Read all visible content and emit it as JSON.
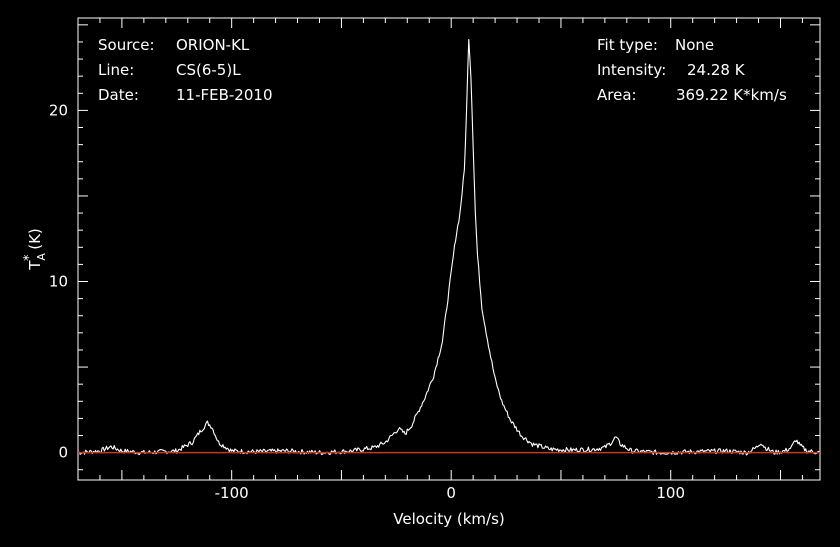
{
  "annotations": {
    "left": [
      {
        "key": "Source:",
        "value": "ORION-KL"
      },
      {
        "key": "Line:",
        "value": "CS(6-5)L"
      },
      {
        "key": "Date:",
        "value": "11-FEB-2010"
      }
    ],
    "right": [
      {
        "key": "Fit type:",
        "value": "None"
      },
      {
        "key": "Intensity:",
        "value": "24.28 K"
      },
      {
        "key": "Area:",
        "value": "369.22 K*km/s"
      }
    ]
  },
  "colors": {
    "background": "#000000",
    "spectrum": "#ffffff",
    "baseline": "#c0392b",
    "axes": "#ffffff"
  },
  "chart_data": {
    "type": "line",
    "xlabel": "Velocity (km/s)",
    "ylabel": "T*A (K)",
    "xlim": [
      -170,
      168
    ],
    "ylim": [
      -1.6,
      25.4
    ],
    "xticks": [
      -100,
      0,
      100
    ],
    "yticks": [
      0,
      10,
      20
    ],
    "grid": false,
    "series": [
      {
        "style": "spectrum",
        "x": [
          -170,
          -160,
          -155,
          -150,
          -140,
          -125,
          -118,
          -114,
          -111,
          -109,
          -106,
          -100,
          -90,
          -75,
          -60,
          -45,
          -35,
          -30,
          -27,
          -24,
          -21,
          -18,
          -12,
          -8,
          -4,
          0,
          2,
          4,
          6,
          7,
          8,
          9,
          10,
          11,
          12,
          13,
          14,
          16,
          18,
          20,
          23,
          27,
          32,
          37,
          45,
          55,
          65,
          70,
          73,
          75,
          77,
          82,
          95,
          110,
          125,
          135,
          139,
          141,
          143,
          147,
          152,
          155,
          157,
          159,
          162,
          168
        ],
        "y": [
          0.0,
          0.1,
          0.35,
          0.1,
          0.0,
          0.1,
          0.6,
          1.3,
          1.75,
          1.5,
          0.6,
          0.1,
          0.05,
          0.1,
          0.0,
          0.1,
          0.3,
          0.6,
          1.0,
          1.4,
          1.1,
          1.6,
          3.2,
          4.5,
          6.5,
          10.5,
          12.5,
          14.0,
          16.5,
          20.0,
          24.28,
          22.0,
          18.0,
          14.0,
          11.5,
          10.0,
          8.5,
          7.0,
          5.6,
          4.3,
          3.0,
          1.9,
          1.0,
          0.5,
          0.2,
          0.15,
          0.2,
          0.3,
          0.6,
          0.9,
          0.5,
          0.1,
          0.0,
          0.05,
          0.1,
          0.0,
          0.3,
          0.6,
          0.3,
          0.0,
          0.1,
          0.3,
          0.75,
          0.4,
          0.1,
          0.0
        ]
      },
      {
        "style": "baseline",
        "x": [
          -170,
          168
        ],
        "y": [
          0,
          0
        ]
      }
    ]
  }
}
